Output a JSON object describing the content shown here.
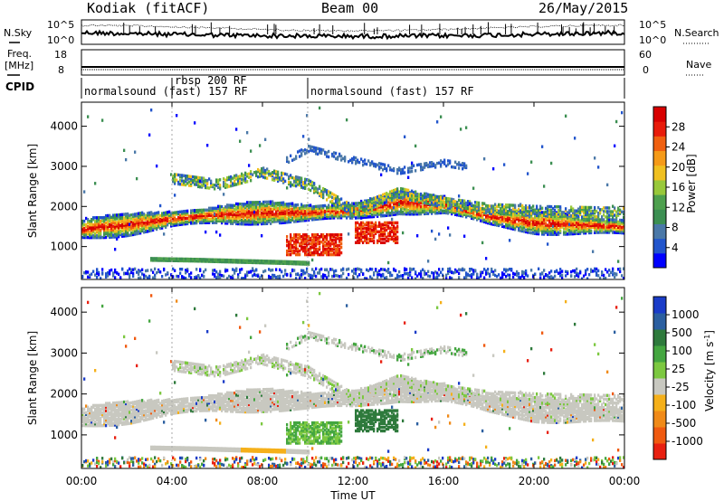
{
  "header": {
    "title": "Kodiak (fitACF)",
    "beam": "Beam 00",
    "date": "26/May/2015"
  },
  "top_panels": {
    "nsky_label": "N.Sky",
    "nsky_ticks": [
      "10^5",
      "10^0"
    ],
    "nsearch_label": "N.Search",
    "freq_label": "Freq.",
    "freq_unit": "[MHz]",
    "freq_ticks": [
      "18",
      "8"
    ],
    "nave_label": "Nave",
    "nave_ticks": [
      "60",
      "0"
    ],
    "cpid_label": "CPID"
  },
  "cpid_segments": [
    {
      "label": "normalsound (fast) 157 RF",
      "start_hour": 0,
      "end_hour": 4.0
    },
    {
      "label": "rbsp 200 RF",
      "start_hour": 4.0,
      "end_hour": 10.0
    },
    {
      "label": "normalsound (fast) 157 RF",
      "start_hour": 10.0,
      "end_hour": 24.0
    }
  ],
  "chart_data": [
    {
      "type": "heatmap",
      "name": "power",
      "ylabel": "Slant Range [km]",
      "ylim": [
        180,
        4600
      ],
      "xlim": [
        0,
        24
      ],
      "yticks": [
        "1000",
        "2000",
        "3000",
        "4000"
      ],
      "colorbar": {
        "label": "Power [dB]",
        "ticks": [
          "28",
          "24",
          "20",
          "16",
          "12",
          "8",
          "4"
        ],
        "colors": [
          "#0000ff",
          "#2255cc",
          "#4a78a8",
          "#3c8f52",
          "#4ea04e",
          "#98c83a",
          "#f0c020",
          "#f59a18",
          "#f06010",
          "#e81b0a",
          "#d80000"
        ]
      },
      "features": [
        {
          "band": "main",
          "x": [
            0,
            2,
            4,
            6,
            8,
            10,
            12,
            14,
            16,
            18,
            20,
            22,
            24
          ],
          "y": [
            1450,
            1550,
            1700,
            1800,
            1850,
            1850,
            1900,
            2100,
            2050,
            1750,
            1600,
            1550,
            1500
          ]
        },
        {
          "band": "upper",
          "x": [
            4,
            6,
            8,
            10,
            12,
            14,
            16,
            18,
            20,
            24
          ],
          "y": [
            2700,
            2550,
            2850,
            2550,
            1900,
            2350,
            2100,
            1950,
            1900,
            1850
          ]
        },
        {
          "band": "high",
          "x": [
            9,
            10,
            11,
            14,
            16,
            17
          ],
          "y": [
            3150,
            3450,
            3300,
            2900,
            3100,
            3000
          ]
        },
        {
          "band": "low",
          "x": [
            3,
            5,
            7,
            9,
            10
          ],
          "y": [
            700,
            680,
            650,
            620,
            600
          ]
        }
      ]
    },
    {
      "type": "heatmap",
      "name": "velocity",
      "ylabel": "Slant Range [km]",
      "xlabel": "Time UT",
      "ylim": [
        180,
        4600
      ],
      "xlim": [
        0,
        24
      ],
      "xticks": [
        "00:00",
        "04:00",
        "08:00",
        "12:00",
        "16:00",
        "20:00",
        "00:00"
      ],
      "yticks": [
        "1000",
        "2000",
        "3000",
        "4000"
      ],
      "colorbar": {
        "label": "Velocity [m s^-1]",
        "ticks": [
          "1000",
          "500",
          "100",
          "25",
          "-25",
          "-100",
          "-500",
          "-1000"
        ],
        "colors": [
          "#1a3cc8",
          "#2b5fa0",
          "#2e7a3c",
          "#44a640",
          "#7cc840",
          "#c8c8c0",
          "#f5b01a",
          "#f08a18",
          "#f05a10",
          "#e82010"
        ]
      }
    }
  ]
}
